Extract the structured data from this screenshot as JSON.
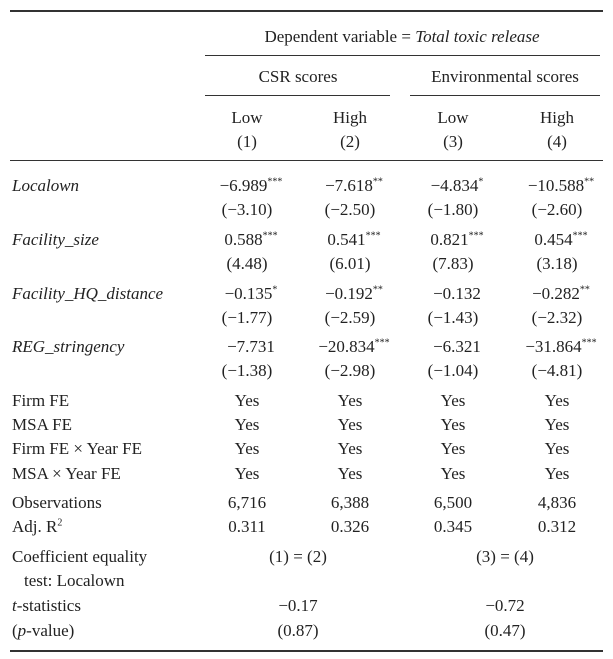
{
  "header": {
    "dependent_prefix": "Dependent variable = ",
    "dependent_variable": "Total toxic release",
    "groups": [
      "CSR scores",
      "Environmental scores"
    ],
    "columns": [
      {
        "label": "Low",
        "number": "(1)"
      },
      {
        "label": "High",
        "number": "(2)"
      },
      {
        "label": "Low",
        "number": "(3)"
      },
      {
        "label": "High",
        "number": "(4)"
      }
    ]
  },
  "table": {
    "coefficients": [
      {
        "variable": "Localown",
        "cells": [
          {
            "coef": "−6.989",
            "stars": "***",
            "t": "(−3.10)"
          },
          {
            "coef": "−7.618",
            "stars": "**",
            "t": "(−2.50)"
          },
          {
            "coef": "−4.834",
            "stars": "*",
            "t": "(−1.80)"
          },
          {
            "coef": "−10.588",
            "stars": "**",
            "t": "(−2.60)"
          }
        ]
      },
      {
        "variable": "Facility_size",
        "cells": [
          {
            "coef": "0.588",
            "stars": "***",
            "t": "(4.48)"
          },
          {
            "coef": "0.541",
            "stars": "***",
            "t": "(6.01)"
          },
          {
            "coef": "0.821",
            "stars": "***",
            "t": "(7.83)"
          },
          {
            "coef": "0.454",
            "stars": "***",
            "t": "(3.18)"
          }
        ]
      },
      {
        "variable": "Facility_HQ_distance",
        "cells": [
          {
            "coef": "−0.135",
            "stars": "*",
            "t": "(−1.77)"
          },
          {
            "coef": "−0.192",
            "stars": "**",
            "t": "(−2.59)"
          },
          {
            "coef": "−0.132",
            "t": "(−1.43)"
          },
          {
            "coef": "−0.282",
            "stars": "**",
            "t": "(−2.32)"
          }
        ]
      },
      {
        "variable": "REG_stringency",
        "cells": [
          {
            "coef": "−7.731",
            "t": "(−1.38)"
          },
          {
            "coef": "−20.834",
            "stars": "***",
            "t": "(−2.98)"
          },
          {
            "coef": "−6.321",
            "t": "(−1.04)"
          },
          {
            "coef": "−31.864",
            "stars": "***",
            "t": "(−4.81)"
          }
        ]
      }
    ],
    "fixed_effects": [
      {
        "label": "Firm FE",
        "cells": [
          "Yes",
          "Yes",
          "Yes",
          "Yes"
        ]
      },
      {
        "label": "MSA FE",
        "cells": [
          "Yes",
          "Yes",
          "Yes",
          "Yes"
        ]
      },
      {
        "label": "Firm FE × Year FE",
        "cells": [
          "Yes",
          "Yes",
          "Yes",
          "Yes"
        ]
      },
      {
        "label": "MSA × Year FE",
        "cells": [
          "Yes",
          "Yes",
          "Yes",
          "Yes"
        ]
      }
    ],
    "observations": {
      "label": "Observations",
      "cells": [
        "6,716",
        "6,388",
        "6,500",
        "4,836"
      ]
    },
    "adj_r2": {
      "label": "Adj. R",
      "sup": "2",
      "cells": [
        "0.311",
        "0.326",
        "0.345",
        "0.312"
      ]
    },
    "equality_test": {
      "label_lines": [
        "Coefficient equality",
        "test: Localown"
      ],
      "comparisons": [
        "(1) = (2)",
        "(3) = (4)"
      ],
      "t_label": {
        "italic": "t",
        "rest": "-statistics"
      },
      "t_values": [
        "−0.17",
        "−0.72"
      ],
      "p_label": {
        "open": "(",
        "italic": "p",
        "rest": "-value)"
      },
      "p_values": [
        "(0.87)",
        "(0.47)"
      ]
    }
  }
}
